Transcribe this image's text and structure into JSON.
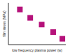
{
  "chart_data": {
    "type": "scatter",
    "x_label": "low frequency plasma power (w)",
    "y_label": "film stress (MPa)",
    "x": [
      20,
      38,
      58,
      78,
      94
    ],
    "values": [
      84,
      64,
      48,
      30,
      14
    ],
    "color": "#b5127a",
    "marker": "square",
    "xlim": [
      0,
      100
    ],
    "xticks": [
      0,
      20,
      40,
      60,
      80,
      100
    ],
    "ylim": [
      0,
      100
    ],
    "yticks": [
      0,
      20,
      40,
      60,
      80,
      100
    ],
    "tick_labels": false
  }
}
